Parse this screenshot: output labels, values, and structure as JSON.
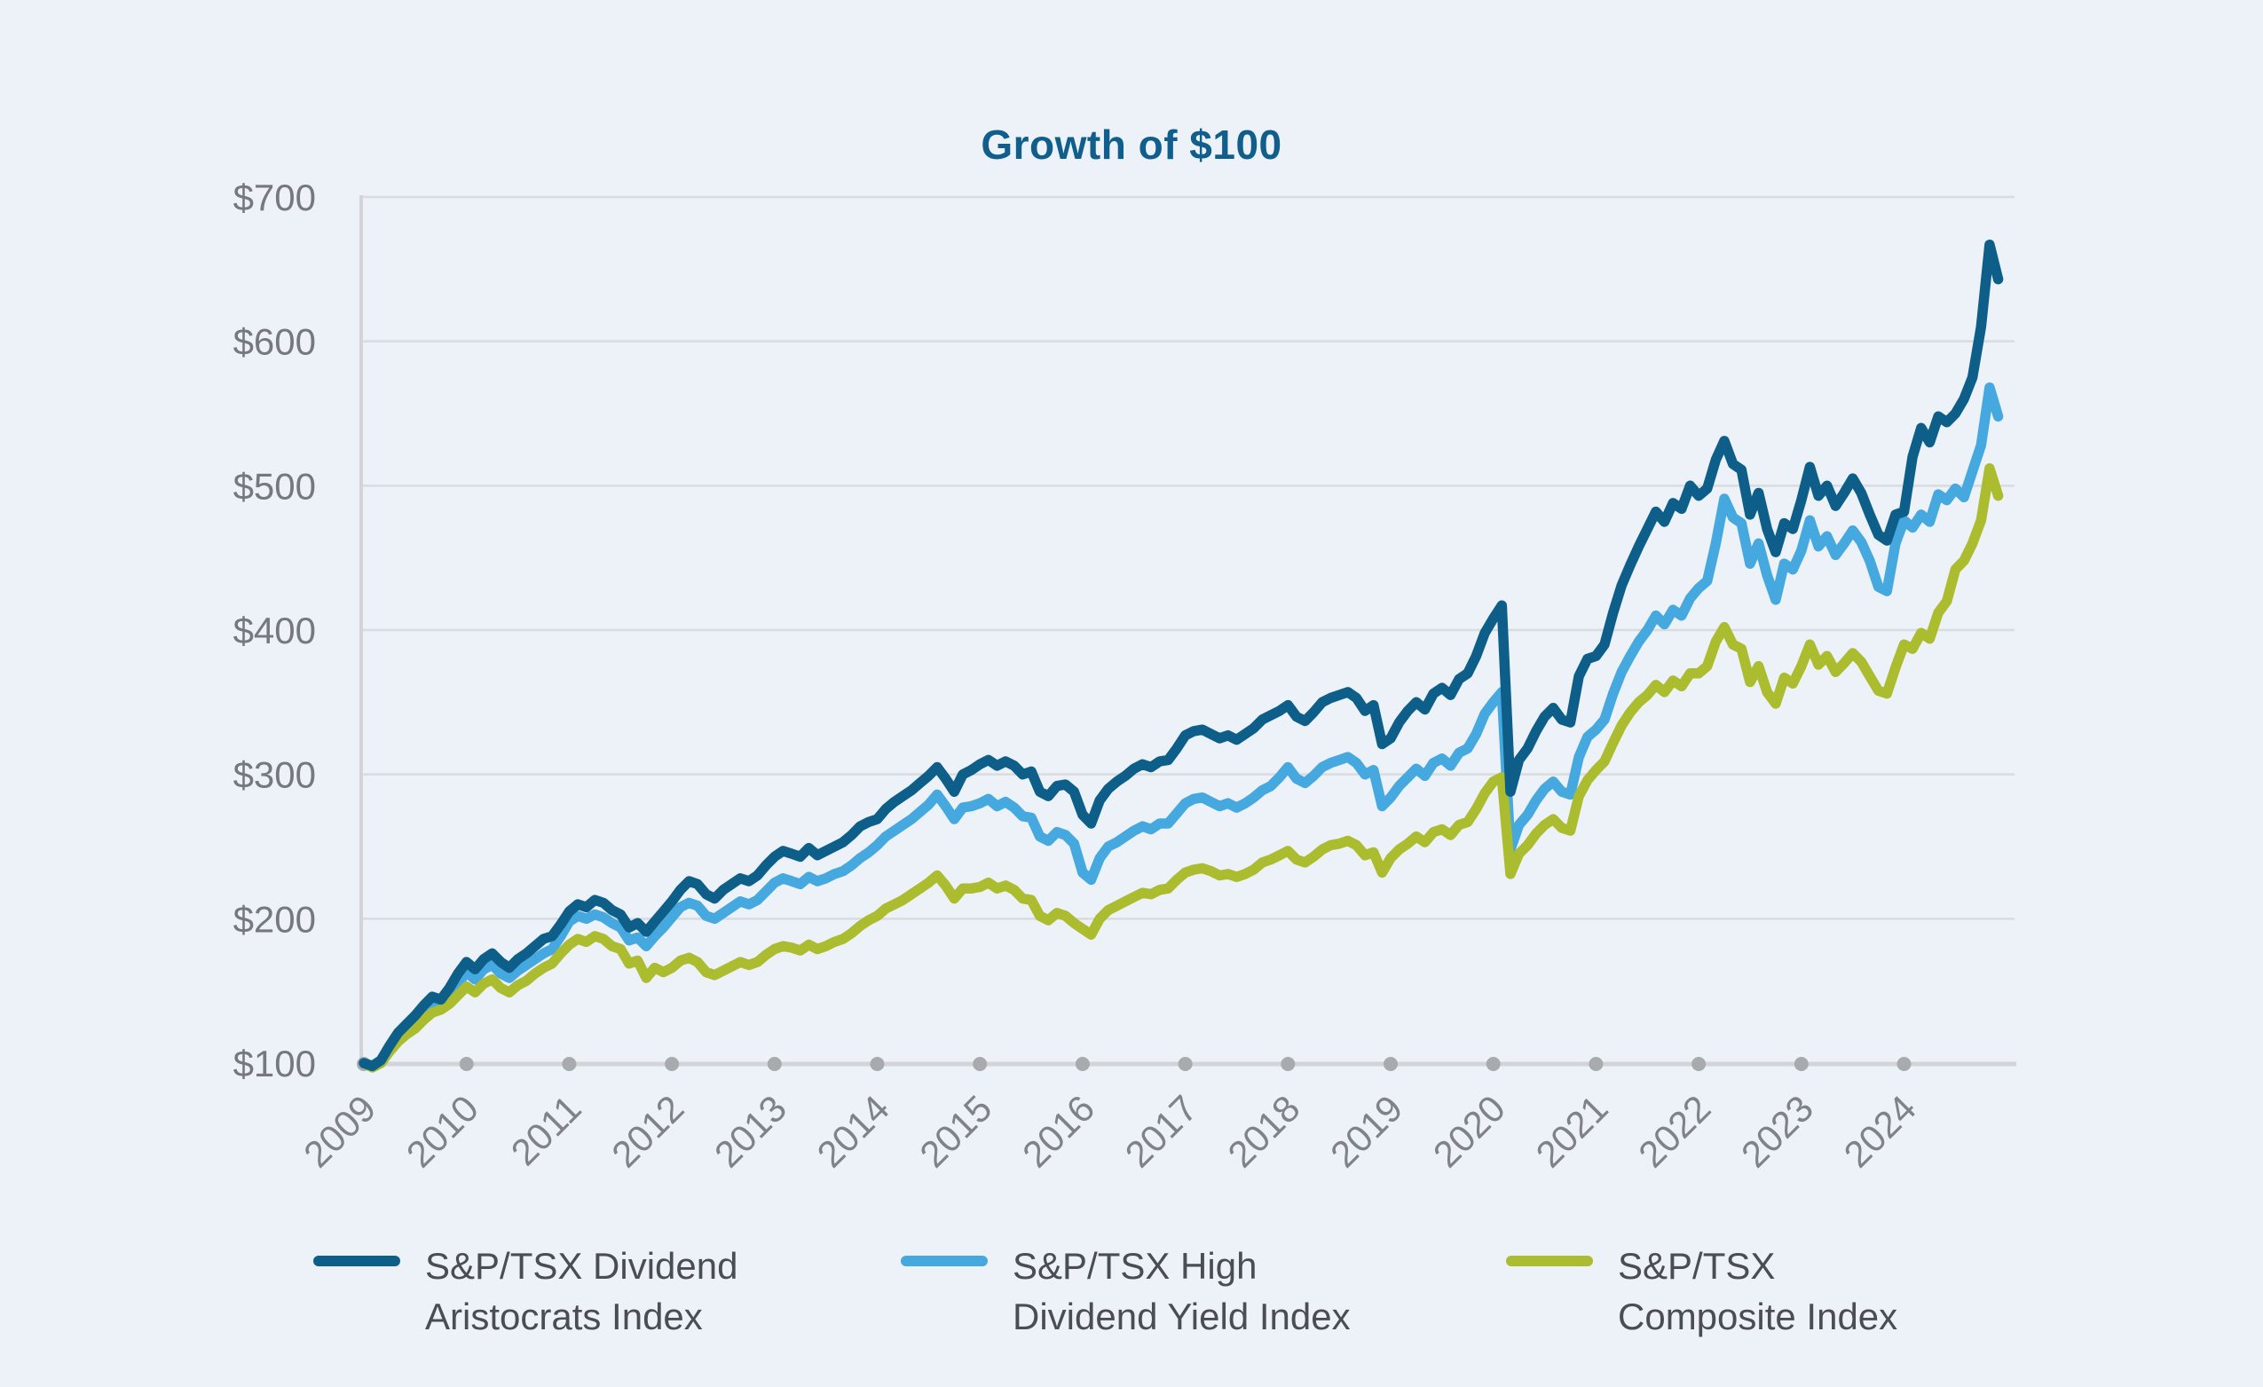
{
  "page": {
    "background": "#edf1f8"
  },
  "chart_data": {
    "type": "line",
    "title": "Growth of $100",
    "title_color": "#0f5e8c",
    "grid": "horizontal",
    "legend_position": "bottom",
    "x_frequency": "monthly",
    "x_range": [
      "2009-01",
      "2024-12"
    ],
    "ylim": [
      100,
      700
    ],
    "y_ticks": [
      {
        "label": "$100",
        "value": 100
      },
      {
        "label": "$200",
        "value": 200
      },
      {
        "label": "$300",
        "value": 300
      },
      {
        "label": "$400",
        "value": 400
      },
      {
        "label": "$500",
        "value": 500
      },
      {
        "label": "$600",
        "value": 600
      },
      {
        "label": "$700",
        "value": 700
      }
    ],
    "x_ticks": [
      "2009",
      "2010",
      "2011",
      "2012",
      "2013",
      "2014",
      "2015",
      "2016",
      "2017",
      "2018",
      "2019",
      "2020",
      "2021",
      "2022",
      "2023",
      "2024"
    ],
    "axis_colors": {
      "gridline": "#d9dbde",
      "axis_line": "#d2d4d7",
      "tick_dot": "#a8abad",
      "y_label": "#75787c",
      "x_label": "#7f8286"
    },
    "series": [
      {
        "id": "dividend-aristocrats",
        "name": "S&P/TSX Dividend Aristocrats Index",
        "legend_lines": [
          "S&P/TSX Dividend",
          "Aristocrats Index"
        ],
        "color": "#0d5f8a",
        "values": [
          100,
          98,
          102,
          112,
          121,
          127,
          133,
          140,
          146,
          144,
          152,
          162,
          170,
          165,
          172,
          176,
          170,
          166,
          172,
          176,
          181,
          186,
          188,
          196,
          205,
          210,
          208,
          213,
          211,
          206,
          203,
          194,
          197,
          191,
          198,
          205,
          212,
          220,
          226,
          224,
          217,
          214,
          220,
          224,
          228,
          226,
          230,
          237,
          243,
          247,
          245,
          243,
          249,
          244,
          247,
          250,
          253,
          258,
          264,
          267,
          269,
          276,
          281,
          285,
          289,
          294,
          299,
          305,
          297,
          288,
          300,
          303,
          307,
          310,
          306,
          309,
          306,
          300,
          302,
          288,
          285,
          292,
          293,
          288,
          272,
          266,
          282,
          290,
          295,
          299,
          304,
          307,
          305,
          309,
          310,
          318,
          327,
          330,
          331,
          328,
          325,
          327,
          324,
          328,
          332,
          338,
          341,
          344,
          348,
          340,
          337,
          343,
          350,
          353,
          355,
          357,
          353,
          344,
          348,
          321,
          325,
          336,
          344,
          350,
          345,
          356,
          360,
          355,
          366,
          370,
          382,
          398,
          408,
          417,
          288,
          310,
          318,
          330,
          340,
          346,
          338,
          336,
          368,
          380,
          382,
          390,
          412,
          431,
          445,
          458,
          470,
          482,
          475,
          488,
          484,
          500,
          493,
          498,
          518,
          531,
          515,
          511,
          480,
          495,
          470,
          454,
          474,
          470,
          490,
          513,
          493,
          500,
          486,
          495,
          505,
          495,
          480,
          466,
          462,
          480,
          482,
          520,
          540,
          530,
          548,
          544,
          550,
          560,
          575,
          610,
          667,
          643
        ]
      },
      {
        "id": "high-dividend-yield",
        "name": "S&P/TSX High Dividend Yield Index",
        "legend_lines": [
          "S&P/TSX High",
          "Dividend Yield Index"
        ],
        "color": "#45a8de",
        "values": [
          100,
          98,
          101,
          110,
          118,
          123,
          128,
          135,
          140,
          142,
          148,
          155,
          163,
          158,
          165,
          168,
          162,
          159,
          164,
          168,
          172,
          176,
          179,
          188,
          198,
          202,
          200,
          203,
          201,
          197,
          194,
          185,
          187,
          181,
          188,
          194,
          201,
          208,
          211,
          209,
          202,
          200,
          204,
          208,
          212,
          210,
          213,
          219,
          225,
          228,
          226,
          224,
          229,
          226,
          228,
          231,
          233,
          237,
          242,
          246,
          251,
          257,
          261,
          265,
          269,
          274,
          279,
          286,
          278,
          269,
          277,
          278,
          280,
          283,
          278,
          281,
          277,
          271,
          270,
          257,
          254,
          260,
          258,
          252,
          232,
          227,
          242,
          250,
          253,
          257,
          261,
          264,
          262,
          266,
          266,
          273,
          280,
          283,
          284,
          281,
          278,
          280,
          277,
          280,
          284,
          289,
          292,
          298,
          305,
          297,
          294,
          299,
          305,
          308,
          310,
          312,
          308,
          300,
          303,
          278,
          284,
          292,
          298,
          304,
          299,
          308,
          311,
          306,
          315,
          318,
          328,
          342,
          350,
          357,
          248,
          265,
          272,
          282,
          290,
          295,
          288,
          286,
          312,
          326,
          331,
          338,
          356,
          371,
          382,
          392,
          400,
          410,
          404,
          414,
          410,
          422,
          429,
          434,
          460,
          491,
          478,
          474,
          446,
          460,
          438,
          421,
          446,
          442,
          455,
          476,
          458,
          465,
          452,
          460,
          469,
          461,
          448,
          430,
          427,
          460,
          476,
          471,
          480,
          475,
          494,
          490,
          498,
          492,
          510,
          528,
          568,
          548
        ]
      },
      {
        "id": "composite",
        "name": "S&P/TSX Composite Index",
        "legend_lines": [
          "S&P/TSX",
          "Composite Index"
        ],
        "color": "#abbc2f",
        "values": [
          100,
          97,
          100,
          108,
          115,
          120,
          124,
          130,
          135,
          137,
          141,
          147,
          153,
          149,
          155,
          158,
          152,
          149,
          154,
          157,
          162,
          166,
          169,
          176,
          182,
          186,
          184,
          188,
          186,
          181,
          179,
          169,
          171,
          159,
          166,
          163,
          166,
          171,
          173,
          170,
          163,
          161,
          164,
          167,
          170,
          168,
          170,
          175,
          179,
          181,
          180,
          178,
          182,
          179,
          181,
          184,
          186,
          190,
          195,
          199,
          202,
          207,
          210,
          213,
          217,
          221,
          225,
          230,
          223,
          214,
          221,
          221,
          222,
          225,
          221,
          223,
          220,
          214,
          213,
          202,
          199,
          204,
          202,
          197,
          193,
          189,
          200,
          206,
          209,
          212,
          215,
          218,
          217,
          220,
          221,
          227,
          232,
          234,
          235,
          233,
          230,
          231,
          229,
          231,
          234,
          239,
          241,
          244,
          247,
          241,
          239,
          243,
          248,
          251,
          252,
          254,
          251,
          244,
          246,
          232,
          242,
          248,
          252,
          257,
          253,
          260,
          262,
          258,
          265,
          267,
          276,
          287,
          295,
          298,
          231,
          245,
          251,
          259,
          265,
          269,
          263,
          261,
          285,
          296,
          303,
          309,
          322,
          334,
          343,
          350,
          355,
          362,
          357,
          365,
          361,
          370,
          370,
          375,
          392,
          402,
          390,
          387,
          364,
          375,
          357,
          349,
          367,
          363,
          375,
          390,
          376,
          382,
          371,
          377,
          384,
          378,
          368,
          358,
          356,
          374,
          390,
          387,
          398,
          394,
          412,
          420,
          442,
          448,
          460,
          476,
          512,
          493
        ]
      }
    ]
  }
}
